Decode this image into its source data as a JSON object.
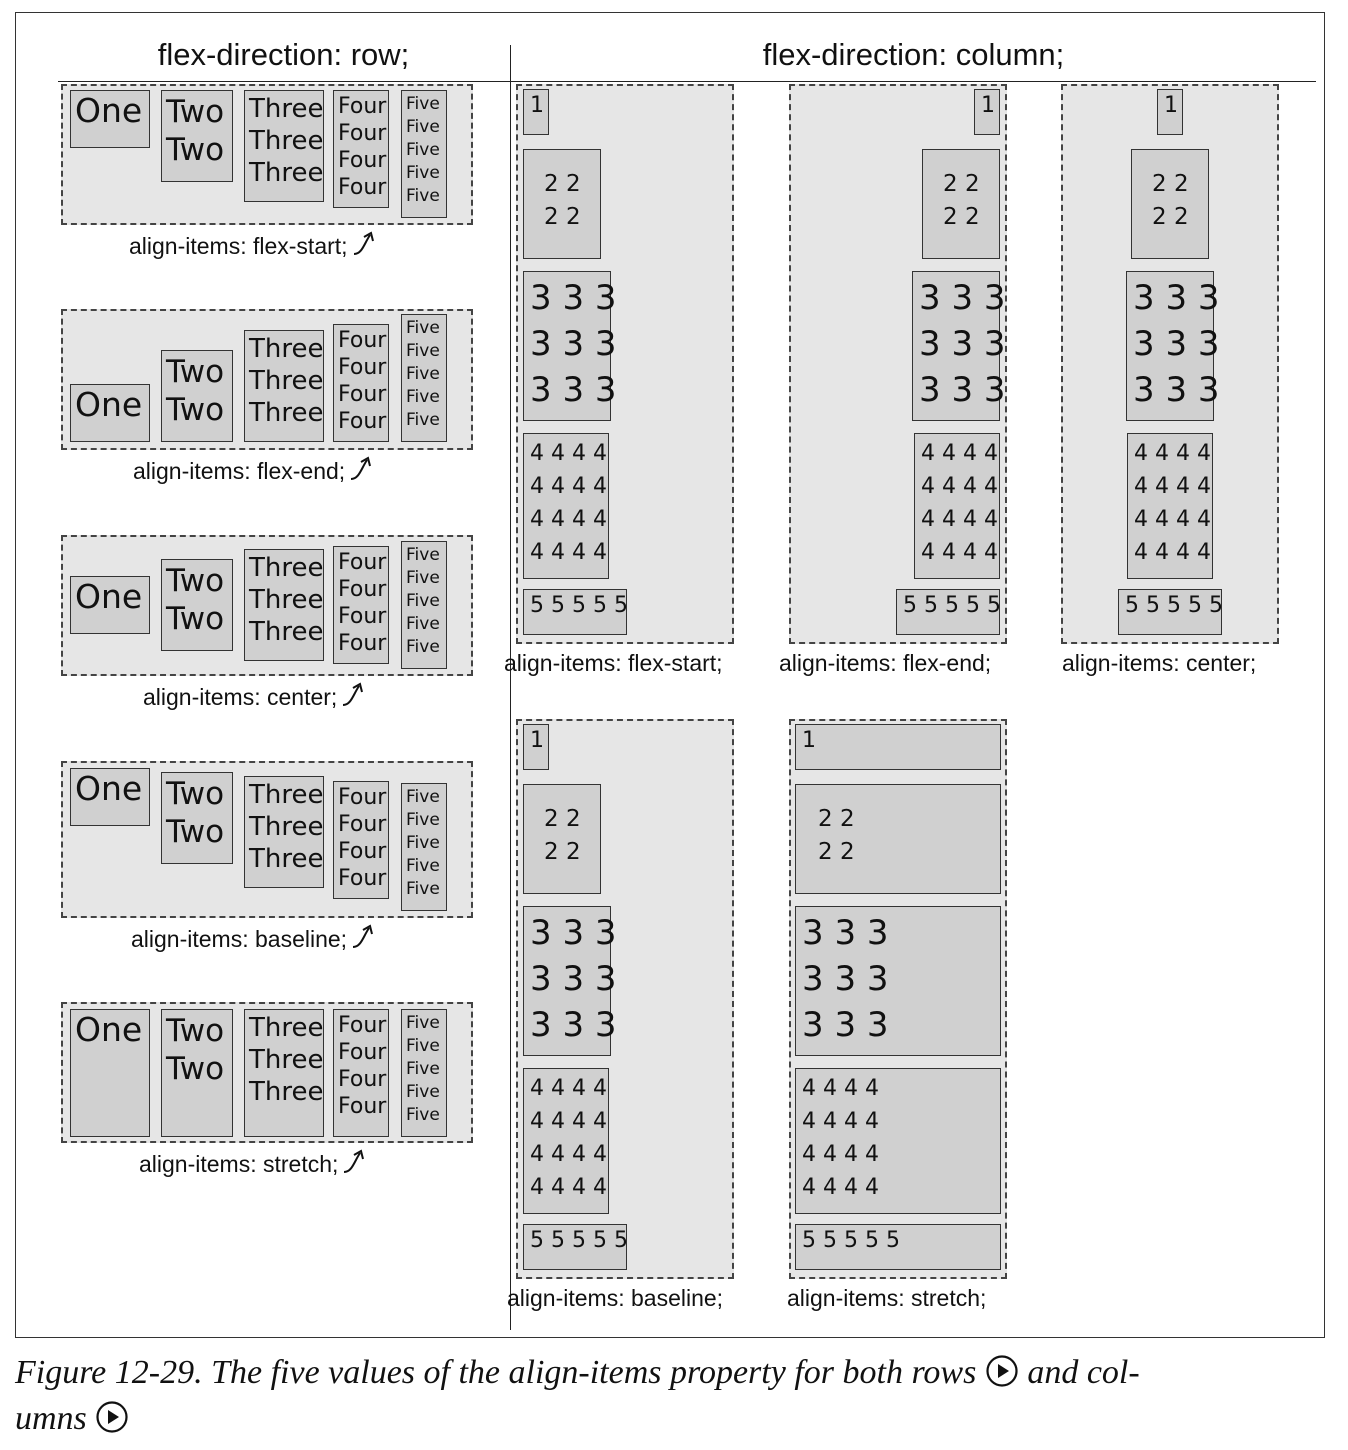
{
  "headings": {
    "row": "flex-direction: row;",
    "column": "flex-direction: column;"
  },
  "row_examples": [
    {
      "caption": "align-items: flex-start;",
      "items": [
        "One",
        "Two\nTwo",
        "Three\nThree\nThree",
        "Four\nFour\nFour\nFour",
        "Five\nFive\nFive\nFive\nFive"
      ]
    },
    {
      "caption": "align-items: flex-end;",
      "items": [
        "One",
        "Two\nTwo",
        "Three\nThree\nThree",
        "Four\nFour\nFour\nFour",
        "Five\nFive\nFive\nFive\nFive"
      ]
    },
    {
      "caption": "align-items: center;",
      "items": [
        "One",
        "Two\nTwo",
        "Three\nThree\nThree",
        "Four\nFour\nFour\nFour",
        "Five\nFive\nFive\nFive\nFive"
      ]
    },
    {
      "caption": "align-items: baseline;",
      "items": [
        "One",
        "Two\nTwo",
        "Three\nThree\nThree",
        "Four\nFour\nFour\nFour",
        "Five\nFive\nFive\nFive\nFive"
      ]
    },
    {
      "caption": "align-items: stretch;",
      "items": [
        "One",
        "Two\nTwo",
        "Three\nThree\nThree",
        "Four\nFour\nFour\nFour",
        "Five\nFive\nFive\nFive\nFive"
      ]
    }
  ],
  "column_examples": [
    {
      "caption": "align-items: flex-start;",
      "items": [
        "1",
        "2 2\n2 2",
        "3 3 3\n3 3 3\n3 3 3",
        "4 4 4 4\n4 4 4 4\n4 4 4 4\n4 4 4 4",
        "5 5 5 5 5"
      ]
    },
    {
      "caption": "align-items: flex-end;",
      "items": [
        "1",
        "2 2\n2 2",
        "3 3 3\n3 3 3\n3 3 3",
        "4 4 4 4\n4 4 4 4\n4 4 4 4\n4 4 4 4",
        "5 5 5 5 5"
      ]
    },
    {
      "caption": "align-items: center;",
      "items": [
        "1",
        "2 2\n2 2",
        "3 3 3\n3 3 3\n3 3 3",
        "4 4 4 4\n4 4 4 4\n4 4 4 4\n4 4 4 4",
        "5 5 5 5 5"
      ]
    },
    {
      "caption": "align-items: baseline;",
      "items": [
        "1",
        "2 2\n2 2",
        "3 3 3\n3 3 3\n3 3 3",
        "4 4 4 4\n4 4 4 4\n4 4 4 4\n4 4 4 4",
        "5 5 5 5 5"
      ]
    },
    {
      "caption": "align-items: stretch;",
      "items": [
        "1",
        "2 2\n2 2",
        "3 3 3\n3 3 3\n3 3 3",
        "4 4 4 4\n4 4 4 4\n4 4 4 4\n4 4 4 4",
        "5 5 5 5 5"
      ]
    }
  ],
  "caption": {
    "line1": "Figure 12-29. The five values of the align-items property for both rows",
    "mid": "and col-",
    "line2": "umns",
    "play_icon": "play-circle-icon",
    "arrow_icon": "curved-arrow-icon"
  }
}
